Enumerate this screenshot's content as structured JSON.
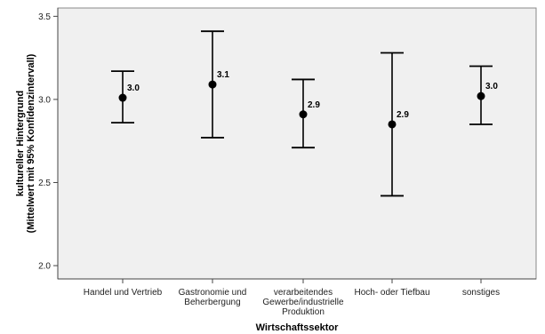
{
  "chart_data": {
    "type": "errorbar",
    "title": "",
    "xlabel": "Wirtschaftssektor",
    "ylabel_lines": [
      "kultureller Hintergrund",
      "(Mittelwert mit 95% Konfidenzintervall)"
    ],
    "ylim": [
      1.92,
      3.55
    ],
    "yticks": [
      2.0,
      2.5,
      3.0,
      3.5
    ],
    "ytick_labels": [
      "2.0",
      "2.5",
      "3.0",
      "3.5"
    ],
    "grid": false,
    "categories": [
      [
        "Handel und Vertrieb"
      ],
      [
        "Gastronomie und",
        "Beherbergung"
      ],
      [
        "verarbeitendes",
        "Gewerbe/industrielle",
        "Produktion"
      ],
      [
        "Hoch- oder Tiefbau"
      ],
      [
        "sonstiges"
      ]
    ],
    "means": [
      3.01,
      3.09,
      2.91,
      2.85,
      3.02
    ],
    "lower": [
      2.86,
      2.77,
      2.71,
      2.42,
      2.85
    ],
    "upper": [
      3.17,
      3.41,
      3.12,
      3.28,
      3.2
    ],
    "data_labels": [
      "3.0",
      "3.1",
      "2.9",
      "2.9",
      "3.0"
    ],
    "colors": {
      "plot_background": "#f0f0f0",
      "axis": "#444444",
      "marker": "#000000"
    }
  }
}
